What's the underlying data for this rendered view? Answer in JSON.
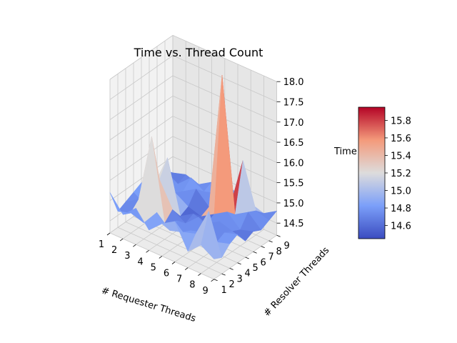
{
  "chart_data": {
    "type": "surface3d",
    "title": "Time vs. Thread Count",
    "xlabel": "# Requester Threads",
    "ylabel": "# Resolver Threads",
    "zlabel": "Time",
    "x": [
      1,
      2,
      3,
      4,
      5,
      6,
      7,
      8,
      9
    ],
    "y": [
      1,
      2,
      3,
      4,
      5,
      6,
      7,
      8,
      9
    ],
    "x_ticks": [
      "1",
      "2",
      "3",
      "4",
      "5",
      "6",
      "7",
      "8",
      "9"
    ],
    "y_ticks": [
      "1",
      "2",
      "3",
      "4",
      "5",
      "6",
      "7",
      "8",
      "9"
    ],
    "z_ticks": [
      "14.5",
      "15.0",
      "15.5",
      "16.0",
      "16.5",
      "17.0",
      "17.5",
      "18.0"
    ],
    "zlim": [
      14.2,
      18.0
    ],
    "colormap": "coolwarm",
    "colorbar": {
      "range": [
        14.45,
        15.95
      ],
      "ticks": [
        "14.6",
        "14.8",
        "15.0",
        "15.2",
        "15.4",
        "15.6",
        "15.8"
      ]
    },
    "grid": true,
    "z": [
      [
        15.2,
        14.6,
        14.7,
        14.8,
        14.9,
        14.6,
        14.7,
        14.8,
        14.6
      ],
      [
        14.8,
        14.7,
        14.9,
        14.6,
        15.0,
        14.7,
        14.9,
        14.6,
        14.7
      ],
      [
        15.1,
        14.6,
        16.6,
        15.4,
        15.8,
        14.8,
        14.7,
        14.9,
        14.6
      ],
      [
        14.7,
        15.0,
        14.6,
        14.8,
        14.5,
        14.6,
        14.9,
        14.7,
        14.8
      ],
      [
        15.0,
        14.7,
        14.8,
        14.6,
        14.7,
        14.5,
        14.6,
        14.8,
        14.9
      ],
      [
        15.2,
        14.8,
        14.7,
        14.9,
        14.6,
        14.7,
        18.0,
        14.6,
        14.8
      ],
      [
        14.6,
        14.9,
        14.8,
        14.6,
        14.8,
        14.9,
        14.7,
        15.9,
        14.7
      ],
      [
        14.9,
        15.6,
        14.7,
        14.8,
        14.7,
        14.6,
        14.9,
        14.8,
        14.6
      ],
      [
        14.7,
        14.6,
        14.8,
        14.9,
        14.6,
        14.7,
        14.6,
        14.7,
        14.8
      ]
    ]
  }
}
